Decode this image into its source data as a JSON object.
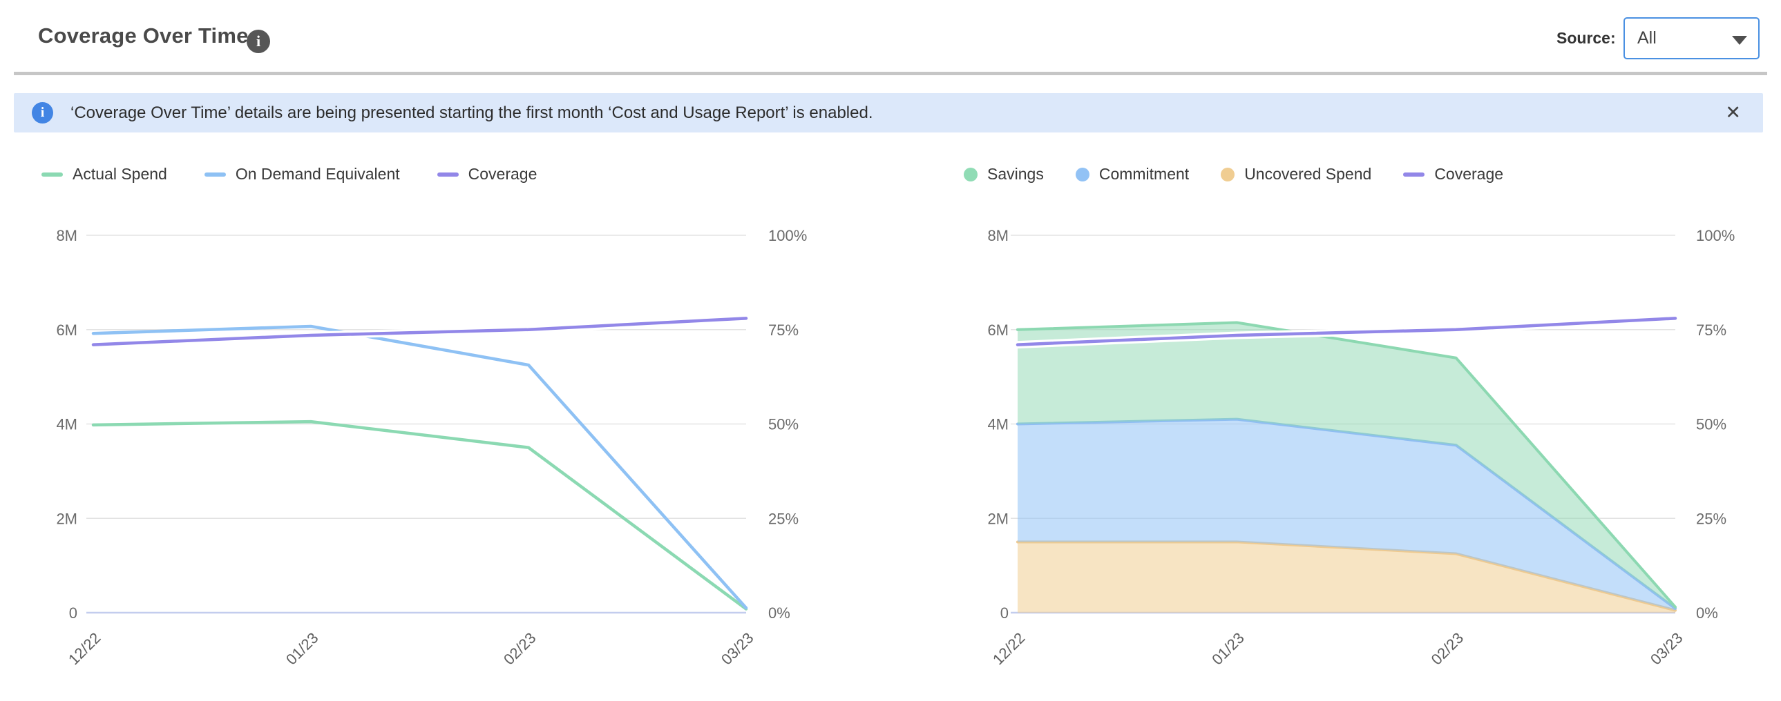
{
  "header": {
    "title": "Coverage Over Time",
    "info_icon": "i",
    "source_label": "Source:",
    "source_value": "All"
  },
  "banner": {
    "icon": "i",
    "text": "‘Coverage Over Time’ details are being presented starting the first month ‘Cost and Usage Report’ is enabled.",
    "close_label": "✕"
  },
  "colors": {
    "accent_blue": "#4a90e2",
    "banner_bg": "#dce8fa",
    "banner_icon_bg": "#4285e4",
    "grid_line": "#e3e3e3",
    "zero_line": "#c3cdee",
    "green": "#8bd9b2",
    "blue": "#8ec1f4",
    "purple": "#9287e8",
    "orange": "#f0cd92"
  },
  "chart_data": [
    {
      "type": "line",
      "title": "Spend and coverage lines",
      "categories": [
        "12/22",
        "01/23",
        "02/23",
        "03/23"
      ],
      "left_axis": {
        "ticks": [
          "0",
          "2M",
          "4M",
          "6M",
          "8M"
        ],
        "range": [
          0,
          8
        ],
        "grid": true
      },
      "right_axis": {
        "ticks": [
          "0%",
          "25%",
          "50%",
          "75%",
          "100%"
        ],
        "range": [
          0,
          100
        ]
      },
      "legend_position": "top-left",
      "series": [
        {
          "name": "Actual Spend",
          "kind": "line",
          "axis": "left",
          "color": "#8bd9b2",
          "values": [
            3.98,
            4.05,
            3.5,
            0.08
          ]
        },
        {
          "name": "On Demand Equivalent",
          "kind": "line",
          "axis": "left",
          "color": "#8ec1f4",
          "values": [
            5.92,
            6.07,
            5.25,
            0.1
          ]
        },
        {
          "name": "Coverage",
          "kind": "line",
          "axis": "right",
          "color": "#9287e8",
          "halo": true,
          "values": [
            71,
            73.5,
            75,
            78
          ]
        }
      ],
      "legend": [
        {
          "label": "Actual Spend",
          "swatch": "line",
          "color": "#8bd9b2"
        },
        {
          "label": "On Demand Equivalent",
          "swatch": "line",
          "color": "#8ec1f4"
        },
        {
          "label": "Coverage",
          "swatch": "line",
          "color": "#9287e8"
        }
      ]
    },
    {
      "type": "area",
      "title": "Stacked savings, commitment and uncovered spend",
      "categories": [
        "12/22",
        "01/23",
        "02/23",
        "03/23"
      ],
      "left_axis": {
        "ticks": [
          "0",
          "2M",
          "4M",
          "6M",
          "8M"
        ],
        "range": [
          0,
          8
        ],
        "grid": true
      },
      "right_axis": {
        "ticks": [
          "0%",
          "25%",
          "50%",
          "75%",
          "100%"
        ],
        "range": [
          0,
          100
        ]
      },
      "legend_position": "top-left",
      "series": [
        {
          "name": "Uncovered Spend",
          "kind": "area",
          "axis": "left",
          "color": "#f0cd92",
          "fill": "rgba(240,205,146,0.55)",
          "edge": "#eeca90",
          "values": [
            1.5,
            1.5,
            1.25,
            0.05
          ]
        },
        {
          "name": "Commitment",
          "kind": "area",
          "axis": "left",
          "color": "#92c2f5",
          "fill": "rgba(146,194,245,0.55)",
          "edge": "#8fbef2",
          "values": [
            2.5,
            2.6,
            2.3,
            0.04
          ]
        },
        {
          "name": "Savings",
          "kind": "area",
          "axis": "left",
          "color": "#90dcb5",
          "fill": "rgba(141,216,177,0.5)",
          "edge": "#8cd8b1",
          "values": [
            2.0,
            2.05,
            1.85,
            0.03
          ]
        },
        {
          "name": "Coverage",
          "kind": "line",
          "axis": "right",
          "color": "#9287e8",
          "halo": true,
          "values": [
            71,
            73.5,
            75,
            78
          ]
        }
      ],
      "legend": [
        {
          "label": "Savings",
          "swatch": "dot",
          "color": "#90dcb5"
        },
        {
          "label": "Commitment",
          "swatch": "dot",
          "color": "#92c2f5"
        },
        {
          "label": "Uncovered Spend",
          "swatch": "dot",
          "color": "#f0cd92"
        },
        {
          "label": "Coverage",
          "swatch": "line",
          "color": "#9287e8"
        }
      ]
    }
  ]
}
